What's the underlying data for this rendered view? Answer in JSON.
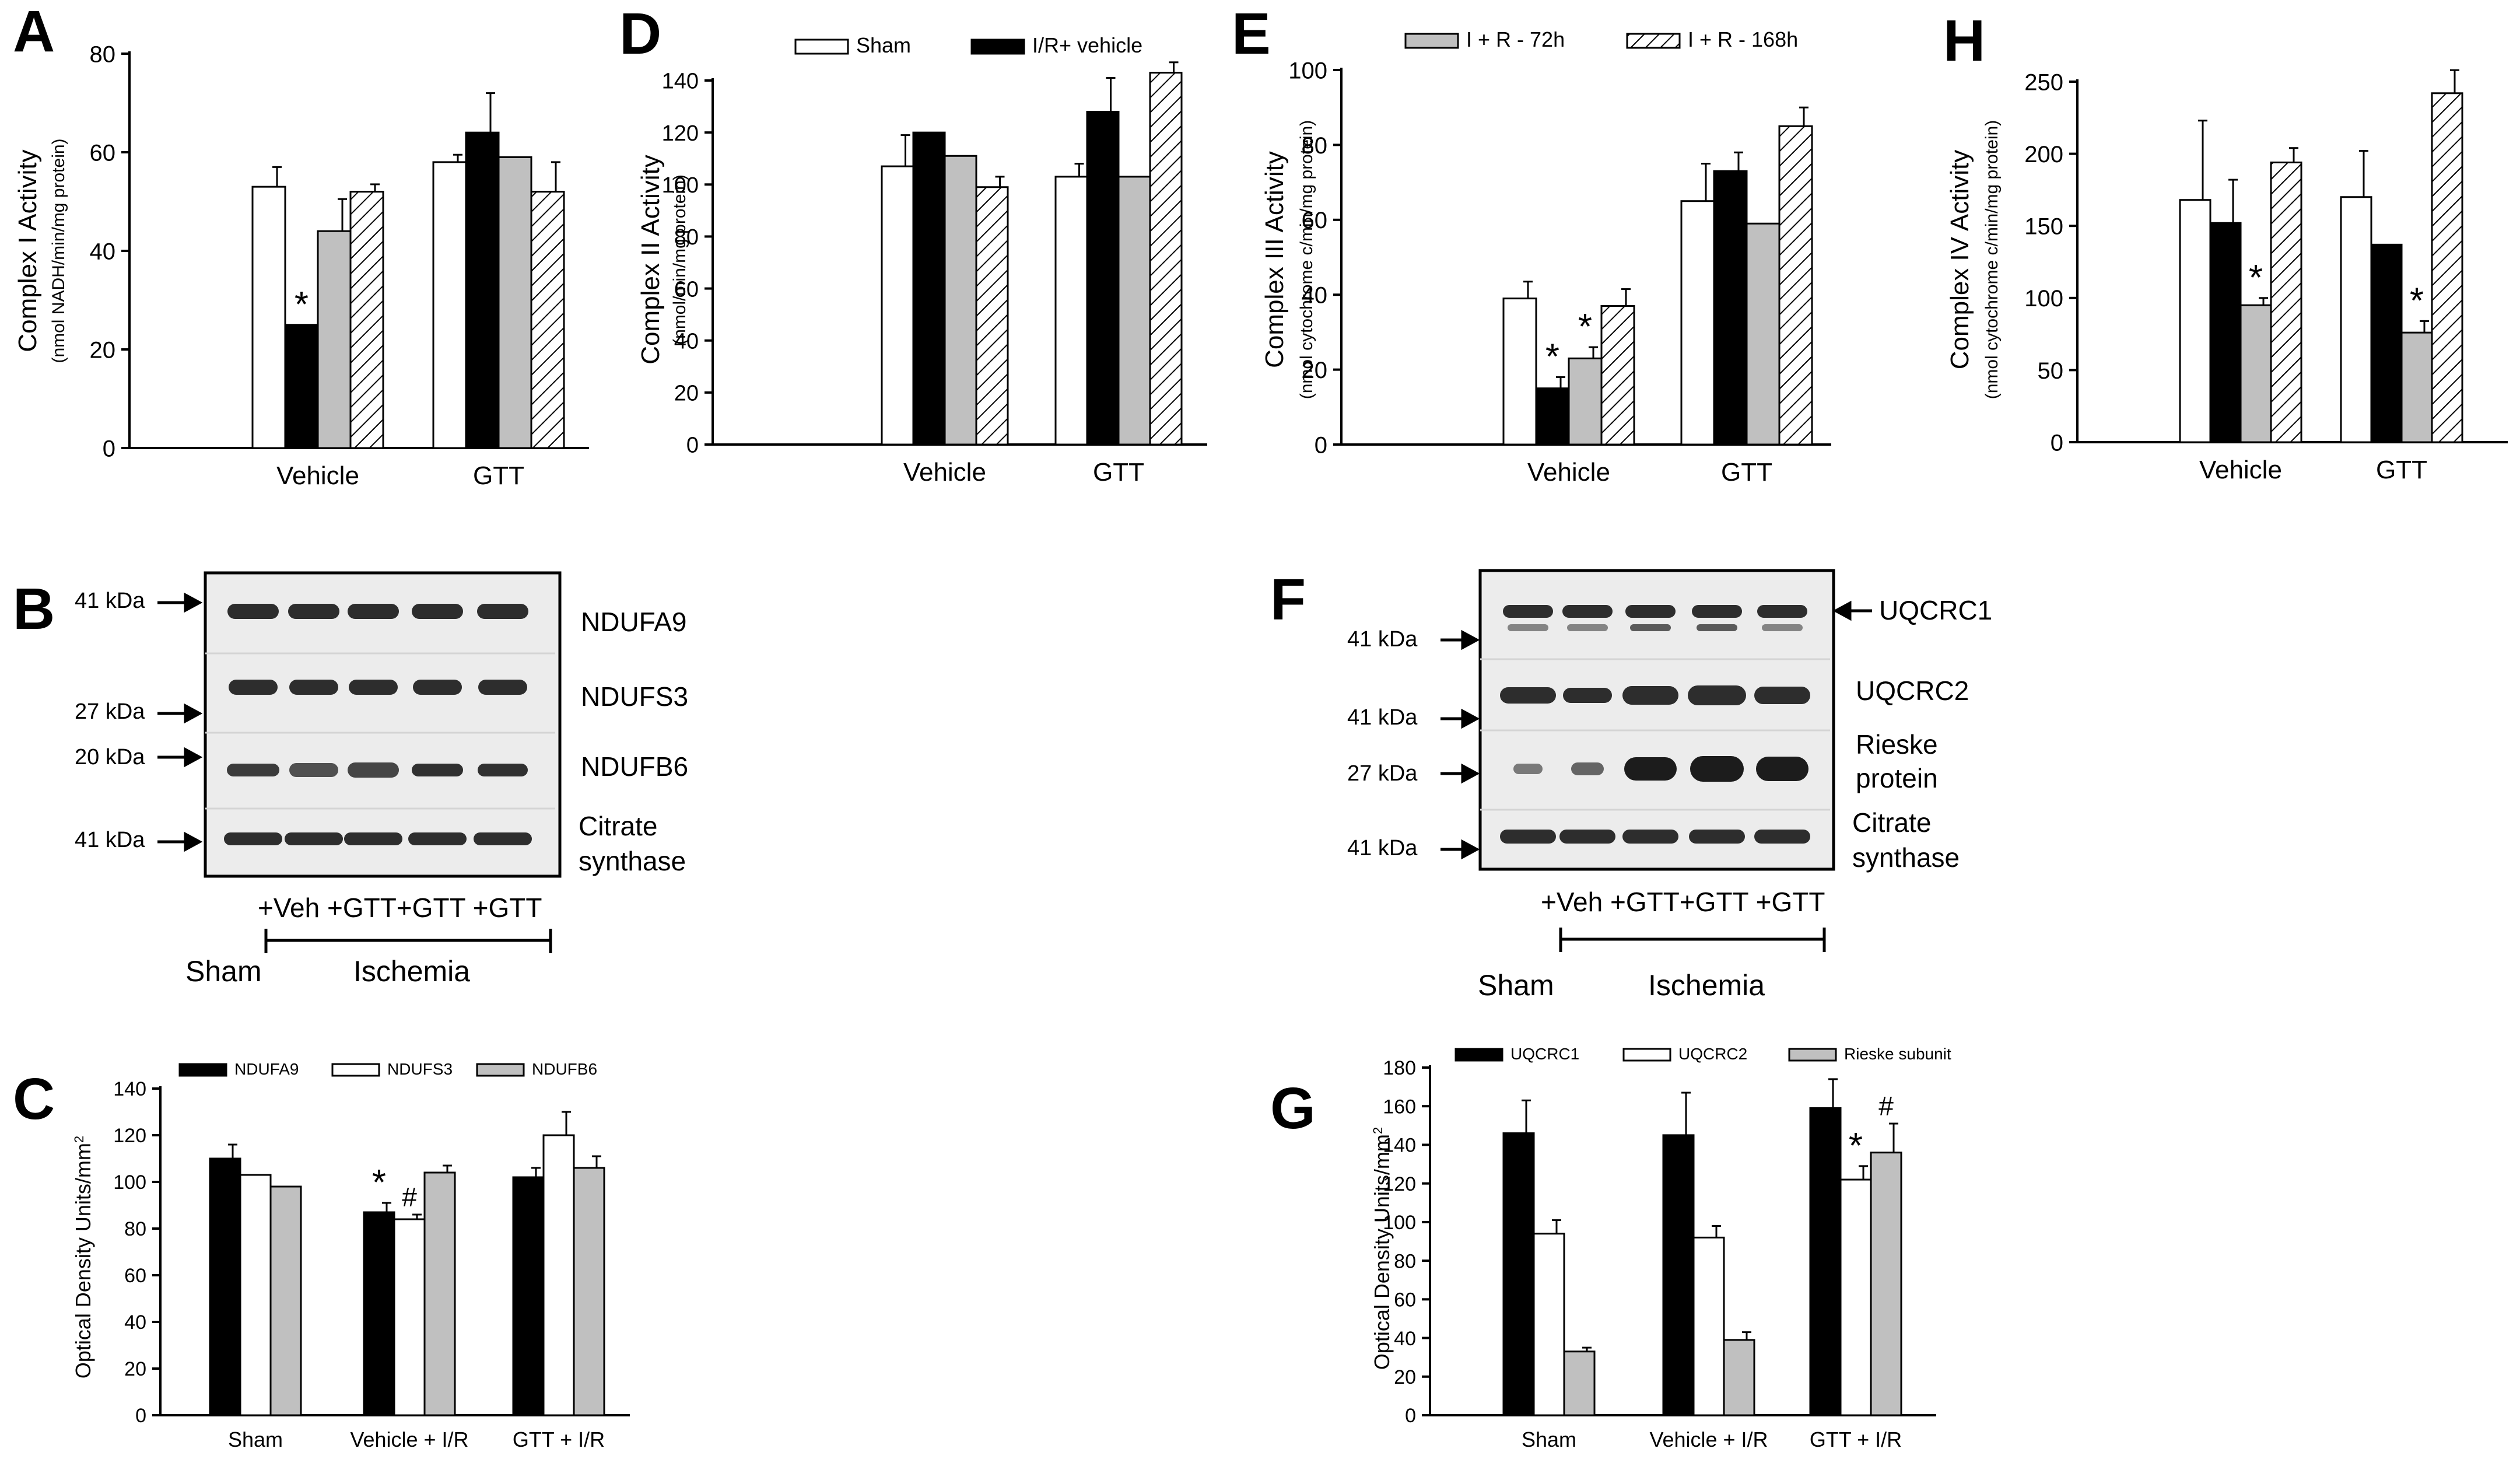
{
  "colors": {
    "sham": "#ffffff",
    "vehicle": "#000000",
    "r72": "#c0c0c0",
    "r168": "hatch",
    "outline": "#000000",
    "band": "#1a1a1a",
    "blotBg": "#e6e6e6"
  },
  "chart_data": [
    {
      "panel": "A",
      "type": "bar",
      "ylabel": "Complex I Activity",
      "yunit": "(nmol NADH/min/mg protein)",
      "ylim": [
        0,
        80
      ],
      "ticks": [
        0,
        20,
        40,
        60,
        80
      ],
      "categories": [
        "Vehicle",
        "GTT"
      ],
      "series": [
        {
          "name": "Sham",
          "values": [
            53,
            58
          ],
          "err": [
            4,
            1.5
          ]
        },
        {
          "name": "I/R+ vehicle",
          "values": [
            25,
            64
          ],
          "err": [
            0,
            8
          ]
        },
        {
          "name": "I + R - 72h",
          "values": [
            44,
            59
          ],
          "err": [
            6.5,
            0
          ]
        },
        {
          "name": "I + R - 168h",
          "values": [
            52,
            52
          ],
          "err": [
            1.5,
            6
          ]
        }
      ],
      "annotations": [
        {
          "cat": 0,
          "series": 1,
          "text": "*"
        }
      ]
    },
    {
      "panel": "D",
      "type": "bar",
      "ylabel": "Complex II Activity",
      "yunit": "(nmol/min/mg protein)",
      "ylim": [
        0,
        140
      ],
      "ticks": [
        0,
        20,
        40,
        60,
        80,
        100,
        120,
        140
      ],
      "categories": [
        "Vehicle",
        "GTT"
      ],
      "series": [
        {
          "name": "Sham",
          "values": [
            107,
            103
          ],
          "err": [
            12,
            5
          ]
        },
        {
          "name": "I/R+ vehicle",
          "values": [
            120,
            128
          ],
          "err": [
            0,
            13
          ]
        },
        {
          "name": "I + R - 72h",
          "values": [
            111,
            103
          ],
          "err": [
            0,
            0
          ]
        },
        {
          "name": "I + R - 168h",
          "values": [
            99,
            143
          ],
          "err": [
            4,
            4
          ]
        }
      ],
      "legend": [
        {
          "name": "Sham",
          "key": "sham"
        },
        {
          "name": "I/R+ vehicle",
          "key": "vehicle"
        }
      ],
      "annotations": []
    },
    {
      "panel": "E",
      "type": "bar",
      "ylabel": "Complex III Activity",
      "yunit": "(nmol cytochrome c/min/mg protein)",
      "ylim": [
        0,
        100
      ],
      "ticks": [
        0,
        20,
        40,
        60,
        80,
        100
      ],
      "categories": [
        "Vehicle",
        "GTT"
      ],
      "series": [
        {
          "name": "Sham",
          "values": [
            39,
            65
          ],
          "err": [
            4.5,
            10
          ]
        },
        {
          "name": "I/R+ vehicle",
          "values": [
            15,
            73
          ],
          "err": [
            3,
            5
          ]
        },
        {
          "name": "I + R - 72h",
          "values": [
            23,
            59
          ],
          "err": [
            3,
            0
          ]
        },
        {
          "name": "I + R - 168h",
          "values": [
            37,
            85
          ],
          "err": [
            4.5,
            5
          ]
        }
      ],
      "legend": [
        {
          "name": "I + R - 72h",
          "key": "r72"
        },
        {
          "name": "I + R - 168h",
          "key": "r168"
        }
      ],
      "annotations": [
        {
          "cat": 0,
          "series": 1,
          "text": "*"
        },
        {
          "cat": 0,
          "series": 2,
          "text": "*"
        }
      ]
    },
    {
      "panel": "H",
      "type": "bar",
      "ylabel": "Complex IV Activity",
      "yunit": "(nmol cytochrome c/min/mg protein)",
      "ylim": [
        0,
        250
      ],
      "ticks": [
        0,
        50,
        100,
        150,
        200,
        250
      ],
      "categories": [
        "Vehicle",
        "GTT"
      ],
      "series": [
        {
          "name": "Sham",
          "values": [
            168,
            170
          ],
          "err": [
            55,
            32
          ]
        },
        {
          "name": "I/R+ vehicle",
          "values": [
            152,
            137
          ],
          "err": [
            30,
            0
          ]
        },
        {
          "name": "I + R - 72h",
          "values": [
            95,
            76
          ],
          "err": [
            5,
            8
          ]
        },
        {
          "name": "I + R - 168h",
          "values": [
            194,
            242
          ],
          "err": [
            10,
            16
          ]
        }
      ],
      "annotations": [
        {
          "cat": 0,
          "series": 2,
          "text": "*"
        },
        {
          "cat": 1,
          "series": 2,
          "text": "*"
        }
      ]
    },
    {
      "panel": "C",
      "type": "bar",
      "ylabel": "Optical Density Units/mm",
      "ysup": "2",
      "ylim": [
        0,
        140
      ],
      "ticks": [
        0,
        20,
        40,
        60,
        80,
        100,
        120,
        140
      ],
      "categories": [
        "Sham",
        "Vehicle + I/R",
        "GTT + I/R"
      ],
      "series": [
        {
          "name": "NDUFA9",
          "values": [
            110,
            87,
            102
          ],
          "err": [
            6,
            4,
            4
          ]
        },
        {
          "name": "NDUFS3",
          "values": [
            103,
            84,
            120
          ],
          "err": [
            0,
            2,
            10
          ]
        },
        {
          "name": "NDUFB6",
          "values": [
            98,
            104,
            106
          ],
          "err": [
            0,
            3,
            5
          ]
        }
      ],
      "legend": [
        {
          "name": "NDUFA9",
          "key": "black"
        },
        {
          "name": "NDUFS3",
          "key": "white"
        },
        {
          "name": "NDUFB6",
          "key": "gray"
        }
      ],
      "annotations": [
        {
          "cat": 1,
          "series": 0,
          "text": "*"
        },
        {
          "cat": 1,
          "series": 1,
          "text": "#"
        }
      ]
    },
    {
      "panel": "G",
      "type": "bar",
      "ylabel": "Optical Density Units/mm",
      "ysup": "2",
      "ylim": [
        0,
        180
      ],
      "ticks": [
        0,
        20,
        40,
        60,
        80,
        100,
        120,
        140,
        160,
        180
      ],
      "categories": [
        "Sham",
        "Vehicle + I/R",
        "GTT + I/R"
      ],
      "series": [
        {
          "name": "UQCRC1",
          "values": [
            146,
            145,
            159
          ],
          "err": [
            17,
            22,
            15
          ]
        },
        {
          "name": "UQCRC2",
          "values": [
            94,
            92,
            122
          ],
          "err": [
            7,
            6,
            7
          ]
        },
        {
          "name": "Rieske subunit",
          "values": [
            33,
            39,
            136
          ],
          "err": [
            2,
            4,
            15
          ]
        }
      ],
      "legend": [
        {
          "name": "UQCRC1",
          "key": "black"
        },
        {
          "name": "UQCRC2",
          "key": "white"
        },
        {
          "name": "Rieske subunit",
          "key": "gray"
        }
      ],
      "annotations": [
        {
          "cat": 2,
          "series": 1,
          "text": "*"
        },
        {
          "cat": 2,
          "series": 2,
          "text": "#"
        }
      ]
    }
  ],
  "blots": [
    {
      "panel": "B",
      "markers": [
        "41 kDa",
        "27 kDa",
        "20 kDa",
        "41 kDa"
      ],
      "labels": [
        "NDUFA9",
        "NDUFS3",
        "NDUFB6",
        "Citrate",
        "synthase"
      ],
      "lanes": "+Veh +GTT+GTT +GTT",
      "groups": [
        "Sham",
        "Ischemia"
      ]
    },
    {
      "panel": "F",
      "markers": [
        "41 kDa",
        "41 kDa",
        "27 kDa",
        "41 kDa"
      ],
      "labels": [
        "UQCRC1",
        "UQCRC2",
        "Rieske",
        "protein",
        "Citrate",
        "synthase"
      ],
      "lanes": "+Veh +GTT+GTT +GTT",
      "groups": [
        "Sham",
        "Ischemia"
      ]
    }
  ]
}
